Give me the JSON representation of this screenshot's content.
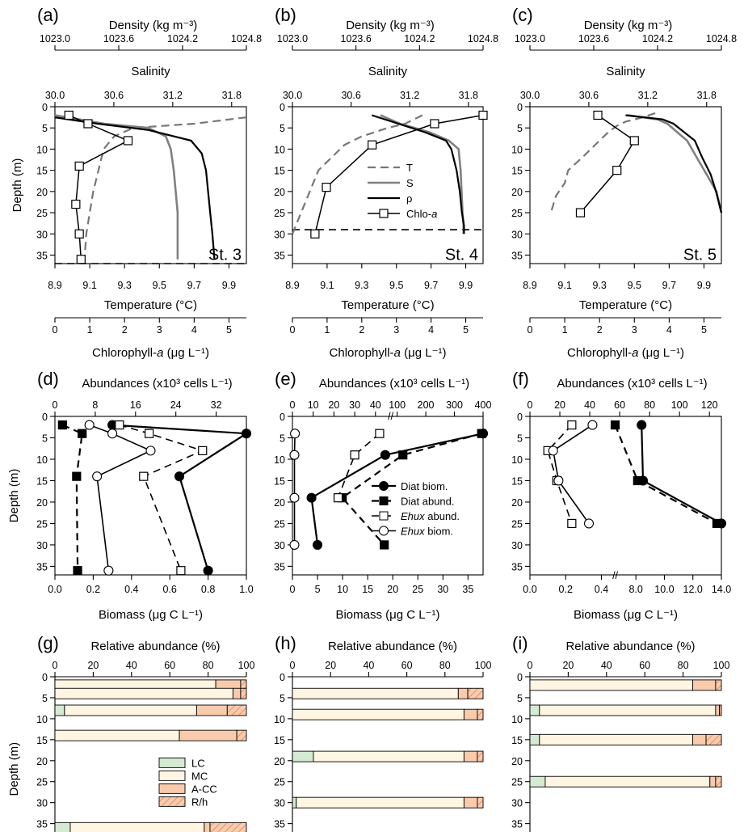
{
  "chart_data": [
    {
      "type": "line",
      "panel": "(a)",
      "station": "St. 3",
      "xlabel_top1": "Density (kg m⁻³)",
      "xlabel_top2": "Salinity",
      "xlabel_bottom1": "Temperature (°C)",
      "xlabel_bottom2": "Chlorophyll-a (μg L⁻¹)",
      "ylabel": "Depth (m)",
      "density_ticks": [
        "1023.0",
        "1023.6",
        "1024.2",
        "1024.8"
      ],
      "salinity_ticks": [
        "30.0",
        "30.6",
        "31.2",
        "31.8"
      ],
      "temperature_ticks": [
        "8.9",
        "9.1",
        "9.3",
        "9.5",
        "9.7",
        "9.9"
      ],
      "chl_ticks": [
        "0",
        "1",
        "2",
        "3",
        "4",
        "5"
      ],
      "depth_ticks": [
        "0",
        "5",
        "10",
        "15",
        "20",
        "25",
        "30",
        "35"
      ],
      "ylim": [
        0,
        37
      ],
      "mld": 37,
      "temperature": {
        "x": [
          10.0,
          9.7,
          9.35,
          9.24,
          9.18,
          9.15,
          9.12,
          9.1,
          9.08,
          9.07
        ],
        "y": [
          2.5,
          4,
          5,
          7,
          10,
          15,
          20,
          25,
          30,
          36
        ]
      },
      "salinity": {
        "x": [
          30.0,
          30.5,
          30.95,
          31.13,
          31.18,
          31.21,
          31.23,
          31.25,
          31.25,
          31.25
        ],
        "y": [
          2,
          4,
          5,
          7,
          10,
          15,
          20,
          25,
          30,
          36
        ]
      },
      "density": {
        "x": [
          1023.0,
          1023.4,
          1023.88,
          1024.28,
          1024.38,
          1024.42,
          1024.44,
          1024.46,
          1024.48,
          1024.5
        ],
        "y": [
          2.5,
          4,
          5.5,
          8,
          11,
          15,
          20,
          25,
          30,
          36
        ]
      },
      "chlorophyll": {
        "x": [
          0.4,
          0.95,
          2.1,
          0.7,
          0.6,
          0.7,
          0.75
        ],
        "y": [
          2,
          4,
          8,
          14,
          23,
          30,
          36
        ]
      }
    },
    {
      "type": "line",
      "panel": "(b)",
      "station": "St. 4",
      "xlabel_top1": "Density (kg m⁻³)",
      "xlabel_top2": "Salinity",
      "xlabel_bottom1": "Temperature (°C)",
      "xlabel_bottom2": "Chlorophyll-a (μg L⁻¹)",
      "density_ticks": [
        "1023.0",
        "1023.6",
        "1024.2",
        "1024.8"
      ],
      "salinity_ticks": [
        "30.0",
        "30.6",
        "31.2",
        "31.8"
      ],
      "temperature_ticks": [
        "8.9",
        "9.1",
        "9.3",
        "9.5",
        "9.7",
        "9.9"
      ],
      "chl_ticks": [
        "0",
        "1",
        "2",
        "3",
        "4",
        "5"
      ],
      "depth_ticks": [
        "0",
        "5",
        "10",
        "15",
        "20",
        "25",
        "30",
        "35"
      ],
      "ylim": [
        0,
        37
      ],
      "mld": 29,
      "legend": [
        "T",
        "S",
        "ρ",
        "Chlo-a"
      ],
      "temperature": {
        "x": [
          9.65,
          9.55,
          9.45,
          9.3,
          9.2,
          9.05,
          9.0,
          8.95,
          8.92,
          8.9
        ],
        "y": [
          2,
          4,
          5,
          7,
          9,
          15,
          20,
          25,
          28,
          30
        ]
      },
      "salinity": {
        "x": [
          30.9,
          31.1,
          31.4,
          31.6,
          31.7,
          31.72,
          31.73,
          31.74,
          31.75,
          31.75
        ],
        "y": [
          2,
          4,
          6,
          8,
          10,
          15,
          20,
          25,
          28,
          30
        ]
      },
      "density": {
        "x": [
          1023.75,
          1024.0,
          1024.25,
          1024.45,
          1024.5,
          1024.55,
          1024.58,
          1024.6,
          1024.62,
          1024.62
        ],
        "y": [
          2,
          4,
          6,
          8,
          10,
          15,
          20,
          25,
          28,
          30
        ]
      },
      "chlorophyll": {
        "x": [
          5.5,
          4.1,
          2.3,
          0.98,
          0.65
        ],
        "y": [
          2,
          4,
          9,
          19,
          30
        ]
      }
    },
    {
      "type": "line",
      "panel": "(c)",
      "station": "St. 5",
      "xlabel_top1": "Density (kg m⁻³)",
      "xlabel_top2": "Salinity",
      "xlabel_bottom1": "Temperature (°C)",
      "xlabel_bottom2": "Chlorophyll-a (μg L⁻¹)",
      "density_ticks": [
        "1023.0",
        "1023.6",
        "1024.2",
        "1024.8"
      ],
      "salinity_ticks": [
        "30.0",
        "30.6",
        "31.2",
        "31.8"
      ],
      "temperature_ticks": [
        "8.9",
        "9.1",
        "9.3",
        "9.5",
        "9.7",
        "9.9"
      ],
      "chl_ticks": [
        "0",
        "1",
        "2",
        "3",
        "4",
        "5"
      ],
      "depth_ticks": [
        "0",
        "5",
        "10",
        "15",
        "20",
        "25",
        "30",
        "35"
      ],
      "ylim": [
        0,
        37
      ],
      "temperature": {
        "x": [
          9.62,
          9.55,
          9.45,
          9.4,
          9.35,
          9.3,
          9.2,
          9.12,
          9.1,
          9.05,
          9.02
        ],
        "y": [
          1.5,
          2.5,
          3.5,
          4.5,
          6,
          8,
          12,
          15,
          18,
          21,
          25
        ]
      },
      "salinity": {
        "x": [
          31.0,
          31.3,
          31.4,
          31.5,
          31.6,
          31.7,
          31.8,
          31.9,
          31.95
        ],
        "y": [
          2,
          3,
          4,
          6,
          8,
          12,
          16,
          20,
          25
        ]
      },
      "density": {
        "x": [
          1023.9,
          1024.25,
          1024.35,
          1024.45,
          1024.55,
          1024.62,
          1024.7,
          1024.75,
          1024.8
        ],
        "y": [
          2,
          3,
          4,
          6,
          8,
          12,
          16,
          20,
          25
        ]
      },
      "chlorophyll": {
        "x": [
          1.95,
          3.0,
          2.5,
          1.45
        ],
        "y": [
          2,
          8,
          15,
          25
        ]
      }
    },
    {
      "type": "line",
      "panel": "(d)",
      "xlabel_top": "Abundances (x10³ cells L⁻¹)",
      "xlabel_bottom": "Biomass (μg C L⁻¹)",
      "ylabel": "Depth (m)",
      "top_ticks": [
        "0",
        "8",
        "16",
        "24",
        "32"
      ],
      "bottom_ticks": [
        "0.0",
        "0.2",
        "0.4",
        "0.6",
        "0.8",
        "1.0"
      ],
      "depth_ticks": [
        "0",
        "5",
        "10",
        "15",
        "20",
        "25",
        "30",
        "35"
      ],
      "ylim": [
        0,
        37
      ],
      "series": [
        {
          "name": "Diat biom.",
          "x": [
            0.3,
            1.0,
            0.65,
            0.8
          ],
          "y": [
            2,
            4,
            14,
            36
          ]
        },
        {
          "name": "Diat abund.",
          "x": [
            1.5,
            5.4,
            4.3,
            4.5
          ],
          "y": [
            2,
            4,
            14,
            36
          ]
        },
        {
          "name": "Ehux abund.",
          "x": [
            12.8,
            18.7,
            29.3,
            17.6,
            25
          ],
          "y": [
            2,
            4,
            8,
            14,
            36
          ]
        },
        {
          "name": "Ehux biom.",
          "x": [
            0.18,
            0.3,
            0.5,
            0.22,
            0.28
          ],
          "y": [
            2,
            4,
            8,
            14,
            36
          ]
        }
      ]
    },
    {
      "type": "line",
      "panel": "(e)",
      "xlabel_top": "Abundances (x10³ cells L⁻¹)",
      "xlabel_bottom": "Biomass (μg C L⁻¹)",
      "top_ticks": [
        "0",
        "10",
        "20",
        "30",
        "40",
        "100",
        "200",
        "300",
        "400"
      ],
      "bottom_ticks": [
        "0",
        "5",
        "10",
        "15",
        "20",
        "25",
        "30",
        "35"
      ],
      "depth_ticks": [
        "0",
        "5",
        "10",
        "15",
        "20",
        "25",
        "30",
        "35"
      ],
      "ylim": [
        0,
        37
      ],
      "legend": [
        "Diat biom.",
        "Diat abund.",
        "Ehux abund.",
        "Ehux biom."
      ],
      "series": [
        {
          "name": "Diat biom.",
          "x": [
            38,
            18.5,
            3.8,
            5
          ],
          "y": [
            4,
            9,
            19,
            30
          ]
        },
        {
          "name": "Diat abund.",
          "x": [
            395,
            120,
            24,
            55
          ],
          "y": [
            4,
            9,
            19,
            30
          ]
        },
        {
          "name": "Ehux abund.",
          "x": [
            42,
            30,
            22
          ],
          "y": [
            4,
            9,
            19
          ]
        },
        {
          "name": "Ehux biom.",
          "x": [
            0.5,
            0.4,
            0.4,
            0.4
          ],
          "y": [
            4,
            9,
            19,
            30
          ]
        }
      ]
    },
    {
      "type": "line",
      "panel": "(f)",
      "xlabel_top": "Abundances (x10³ cells L⁻¹)",
      "xlabel_bottom": "Biomass (μg C L⁻¹)",
      "top_ticks": [
        "0",
        "20",
        "40",
        "60",
        "80",
        "100",
        "120"
      ],
      "bottom_ticks": [
        "0.0",
        "0.2",
        "0.4",
        "8.0",
        "10.0",
        "12.0",
        "14.0"
      ],
      "depth_ticks": [
        "0",
        "5",
        "10",
        "15",
        "20",
        "25",
        "30",
        "35"
      ],
      "ylim": [
        0,
        37
      ],
      "series": [
        {
          "name": "Diat biom.",
          "x": [
            8.4,
            8.5,
            14.0
          ],
          "y": [
            2,
            15,
            25
          ]
        },
        {
          "name": "Diat abund.",
          "x": [
            57,
            72,
            125
          ],
          "y": [
            2,
            15,
            25
          ]
        },
        {
          "name": "Ehux abund.",
          "x": [
            28,
            12,
            18,
            28
          ],
          "y": [
            2,
            8,
            15,
            25
          ]
        },
        {
          "name": "Ehux biom.",
          "x": [
            0.35,
            0.13,
            0.16,
            0.33
          ],
          "y": [
            2,
            8,
            15,
            25
          ]
        }
      ]
    },
    {
      "type": "bar",
      "panel": "(g)",
      "xlabel_top": "Relative abundance (%)",
      "ylabel": "Depth (m)",
      "top_ticks": [
        "0",
        "20",
        "40",
        "60",
        "80",
        "100"
      ],
      "depth_ticks": [
        "0",
        "5",
        "10",
        "15",
        "20",
        "25",
        "30",
        "35"
      ],
      "legend": [
        "LC",
        "MC",
        "A-CC",
        "R/h"
      ],
      "bars": [
        {
          "depth": 2,
          "LC": 0,
          "MC": 84,
          "A-CC": 13,
          "R/h": 3
        },
        {
          "depth": 4,
          "LC": 0,
          "MC": 93,
          "A-CC": 4,
          "R/h": 3
        },
        {
          "depth": 8,
          "LC": 5,
          "MC": 69,
          "A-CC": 16,
          "R/h": 10
        },
        {
          "depth": 14,
          "LC": 0,
          "MC": 65,
          "A-CC": 30,
          "R/h": 5
        },
        {
          "depth": 36,
          "LC": 8,
          "MC": 70,
          "A-CC": 3,
          "R/h": 19
        }
      ]
    },
    {
      "type": "bar",
      "panel": "(h)",
      "xlabel_top": "Relative abundance (%)",
      "top_ticks": [
        "0",
        "20",
        "40",
        "60",
        "80",
        "100"
      ],
      "depth_ticks": [
        "0",
        "5",
        "10",
        "15",
        "20",
        "25",
        "30",
        "35"
      ],
      "bars": [
        {
          "depth": 4,
          "LC": 0,
          "MC": 87,
          "A-CC": 5,
          "R/h": 8
        },
        {
          "depth": 9,
          "LC": 0,
          "MC": 90,
          "A-CC": 7,
          "R/h": 3
        },
        {
          "depth": 19,
          "LC": 11,
          "MC": 79,
          "A-CC": 7,
          "R/h": 3
        },
        {
          "depth": 30,
          "LC": 2,
          "MC": 88,
          "A-CC": 7,
          "R/h": 3
        }
      ]
    },
    {
      "type": "bar",
      "panel": "(i)",
      "xlabel_top": "Relative abundance (%)",
      "top_ticks": [
        "0",
        "20",
        "40",
        "60",
        "80",
        "100"
      ],
      "depth_ticks": [
        "0",
        "5",
        "10",
        "15",
        "20",
        "25",
        "30",
        "35"
      ],
      "bars": [
        {
          "depth": 2,
          "LC": 0,
          "MC": 85,
          "A-CC": 12,
          "R/h": 3
        },
        {
          "depth": 8,
          "LC": 5,
          "MC": 92,
          "A-CC": 2,
          "R/h": 1
        },
        {
          "depth": 15,
          "LC": 5,
          "MC": 80,
          "A-CC": 7,
          "R/h": 8
        },
        {
          "depth": 25,
          "LC": 8,
          "MC": 86,
          "A-CC": 3,
          "R/h": 3
        }
      ]
    }
  ],
  "colors": {
    "LC": "#d5ead2",
    "MC": "#fef5e2",
    "A-CC": "#f8cbad",
    "R/h": "#f8cbad",
    "hatch": "#e0936b",
    "gray": "#777777"
  }
}
